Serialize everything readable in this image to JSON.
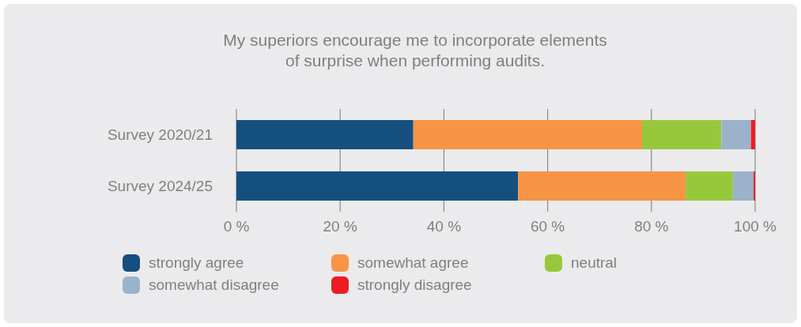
{
  "chart_data": {
    "type": "bar",
    "orientation": "horizontal",
    "stacked": true,
    "title": "My superiors encourage me to incorporate elements\nof surprise when performing audits.",
    "categories": [
      "Survey 2020/21",
      "Survey 2024/25"
    ],
    "series": [
      {
        "name": "strongly agree",
        "color": "#154f80",
        "values": [
          34.1,
          54.3
        ]
      },
      {
        "name": "somewhat agree",
        "color": "#f79445",
        "values": [
          44.1,
          32.3
        ]
      },
      {
        "name": "neutral",
        "color": "#97c83c",
        "values": [
          15.3,
          9.1
        ]
      },
      {
        "name": "somewhat disagree",
        "color": "#9bb2ca",
        "values": [
          5.7,
          4.0
        ]
      },
      {
        "name": "strongly disagree",
        "color": "#ed1c24",
        "values": [
          0.8,
          0.3
        ]
      }
    ],
    "xlim": [
      0,
      100
    ],
    "xticks": [
      {
        "value": 0,
        "label": "0 %"
      },
      {
        "value": 20,
        "label": "20 %"
      },
      {
        "value": 40,
        "label": "40 %"
      },
      {
        "value": 60,
        "label": "60 %"
      },
      {
        "value": 80,
        "label": "80 %"
      },
      {
        "value": 100,
        "label": "100 %"
      }
    ],
    "grid": "x",
    "legend": "bottom"
  }
}
